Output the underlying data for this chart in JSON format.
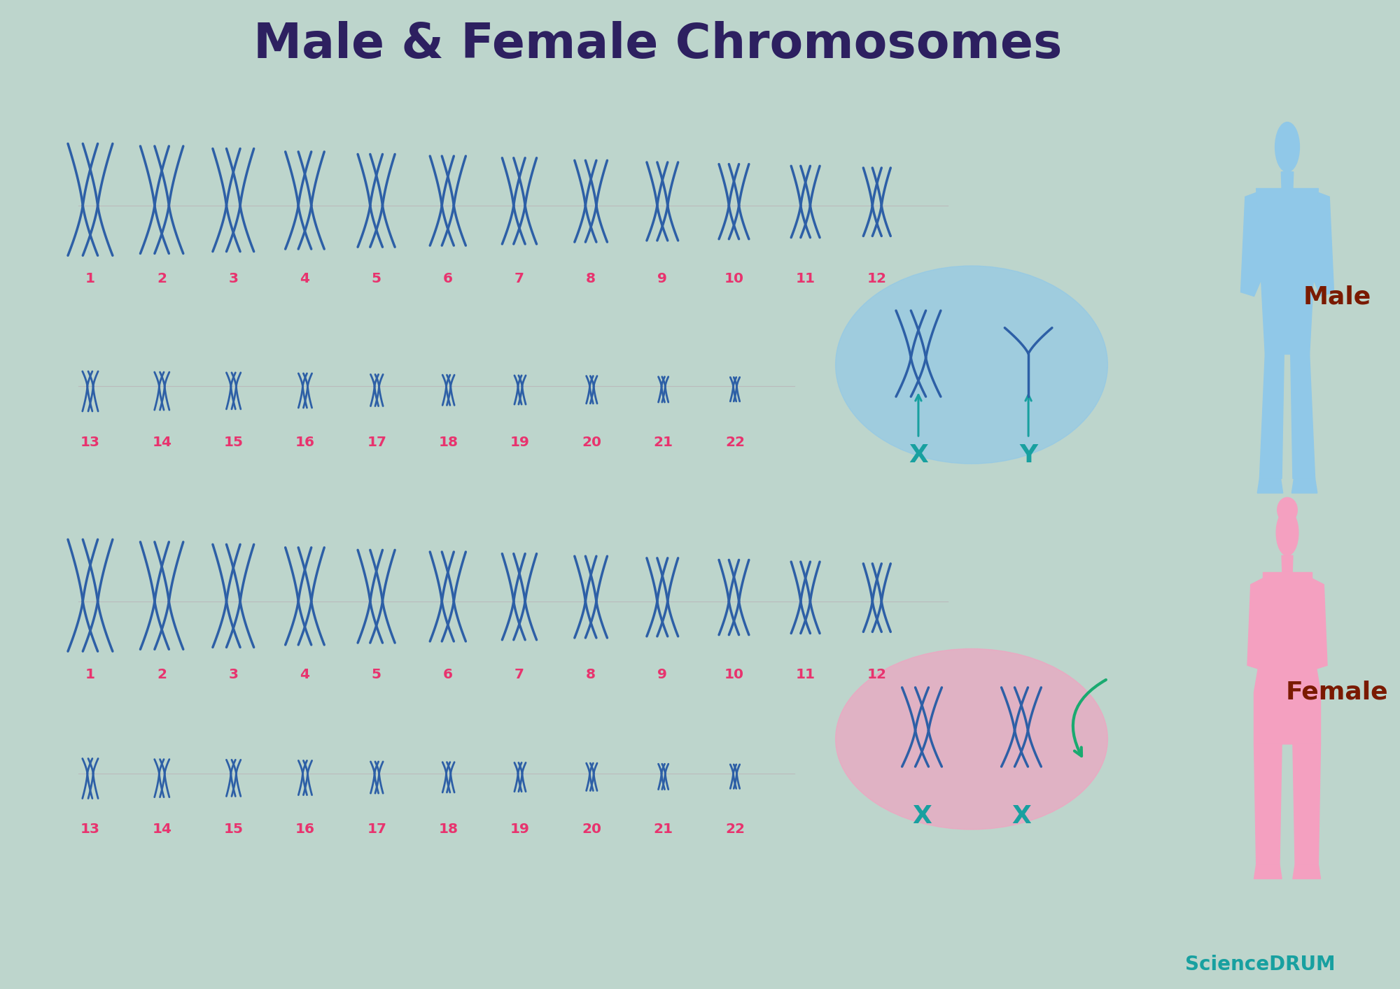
{
  "title": "Male & Female Chromosomes",
  "title_color": "#2d2060",
  "title_fontsize": 50,
  "bg_outer": "#bdd5cc",
  "bg_inner": "#ffffff",
  "chrom_color": "#2d5fa6",
  "number_color": "#e8336e",
  "male_color": "#90c8e8",
  "female_color": "#f4a0c0",
  "male_label_color": "#7a1a00",
  "female_label_color": "#e8336e",
  "xy_label_color": "#18a0a0",
  "sciencedrum_color": "#18a0a0",
  "male_row1_numbers": [
    1,
    2,
    3,
    4,
    5,
    6,
    7,
    8,
    9,
    10,
    11,
    12
  ],
  "male_row2_numbers": [
    13,
    14,
    15,
    16,
    17,
    18,
    19,
    20,
    21,
    22
  ],
  "female_row1_numbers": [
    1,
    2,
    3,
    4,
    5,
    6,
    7,
    8,
    9,
    10,
    11,
    12
  ],
  "female_row2_numbers": [
    13,
    14,
    15,
    16,
    17,
    18,
    19,
    20,
    21,
    22
  ],
  "scales_row1": [
    1.0,
    0.96,
    0.92,
    0.87,
    0.83,
    0.8,
    0.77,
    0.73,
    0.7,
    0.67,
    0.64,
    0.61
  ],
  "scales_row2": [
    0.58,
    0.55,
    0.53,
    0.5,
    0.46,
    0.44,
    0.42,
    0.4,
    0.37,
    0.35
  ]
}
